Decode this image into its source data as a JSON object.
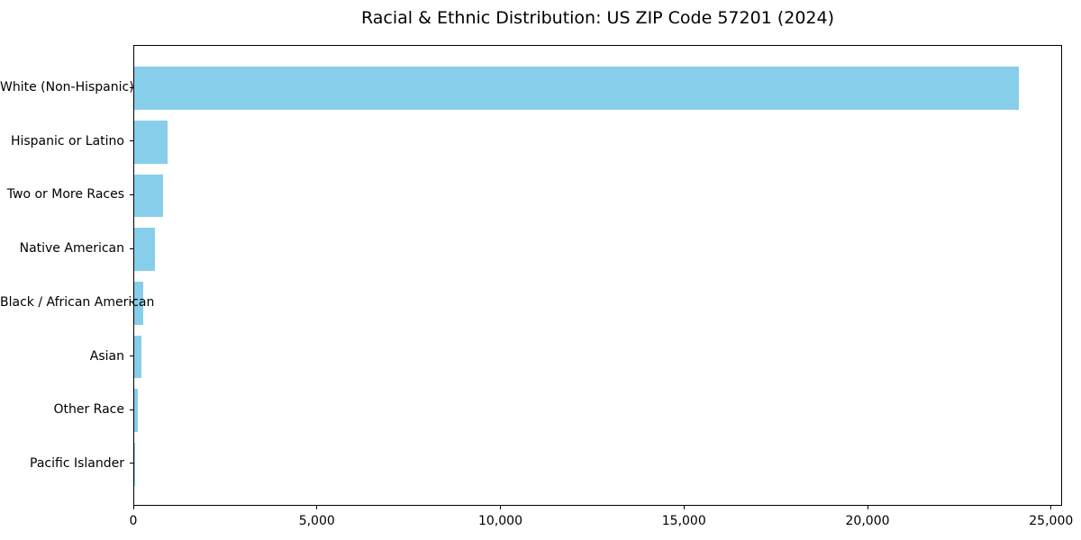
{
  "title": "Racial & Ethnic Distribution: US ZIP Code 57201 (2024)",
  "chart_data": {
    "type": "bar",
    "orientation": "horizontal",
    "title": "Racial & Ethnic Distribution: US ZIP Code 57201 (2024)",
    "categories": [
      "White (Non-Hispanic)",
      "Hispanic or Latino",
      "Two or More Races",
      "Native American",
      "Black / African American",
      "Asian",
      "Other Race",
      "Pacific Islander"
    ],
    "values": [
      24100,
      900,
      780,
      570,
      240,
      185,
      110,
      10
    ],
    "xlabel": "",
    "ylabel": "",
    "xlim": [
      0,
      25300
    ],
    "x_ticks": [
      0,
      5000,
      10000,
      15000,
      20000,
      25000
    ],
    "x_tick_labels": [
      "0",
      "5,000",
      "10,000",
      "15,000",
      "20,000",
      "25,000"
    ],
    "bar_color": "#87CEEB",
    "axis_color": "#000000",
    "text_color": "#000000",
    "background_color": "#ffffff",
    "grid": false,
    "legend": "none",
    "bar_height_fraction": 0.8
  }
}
